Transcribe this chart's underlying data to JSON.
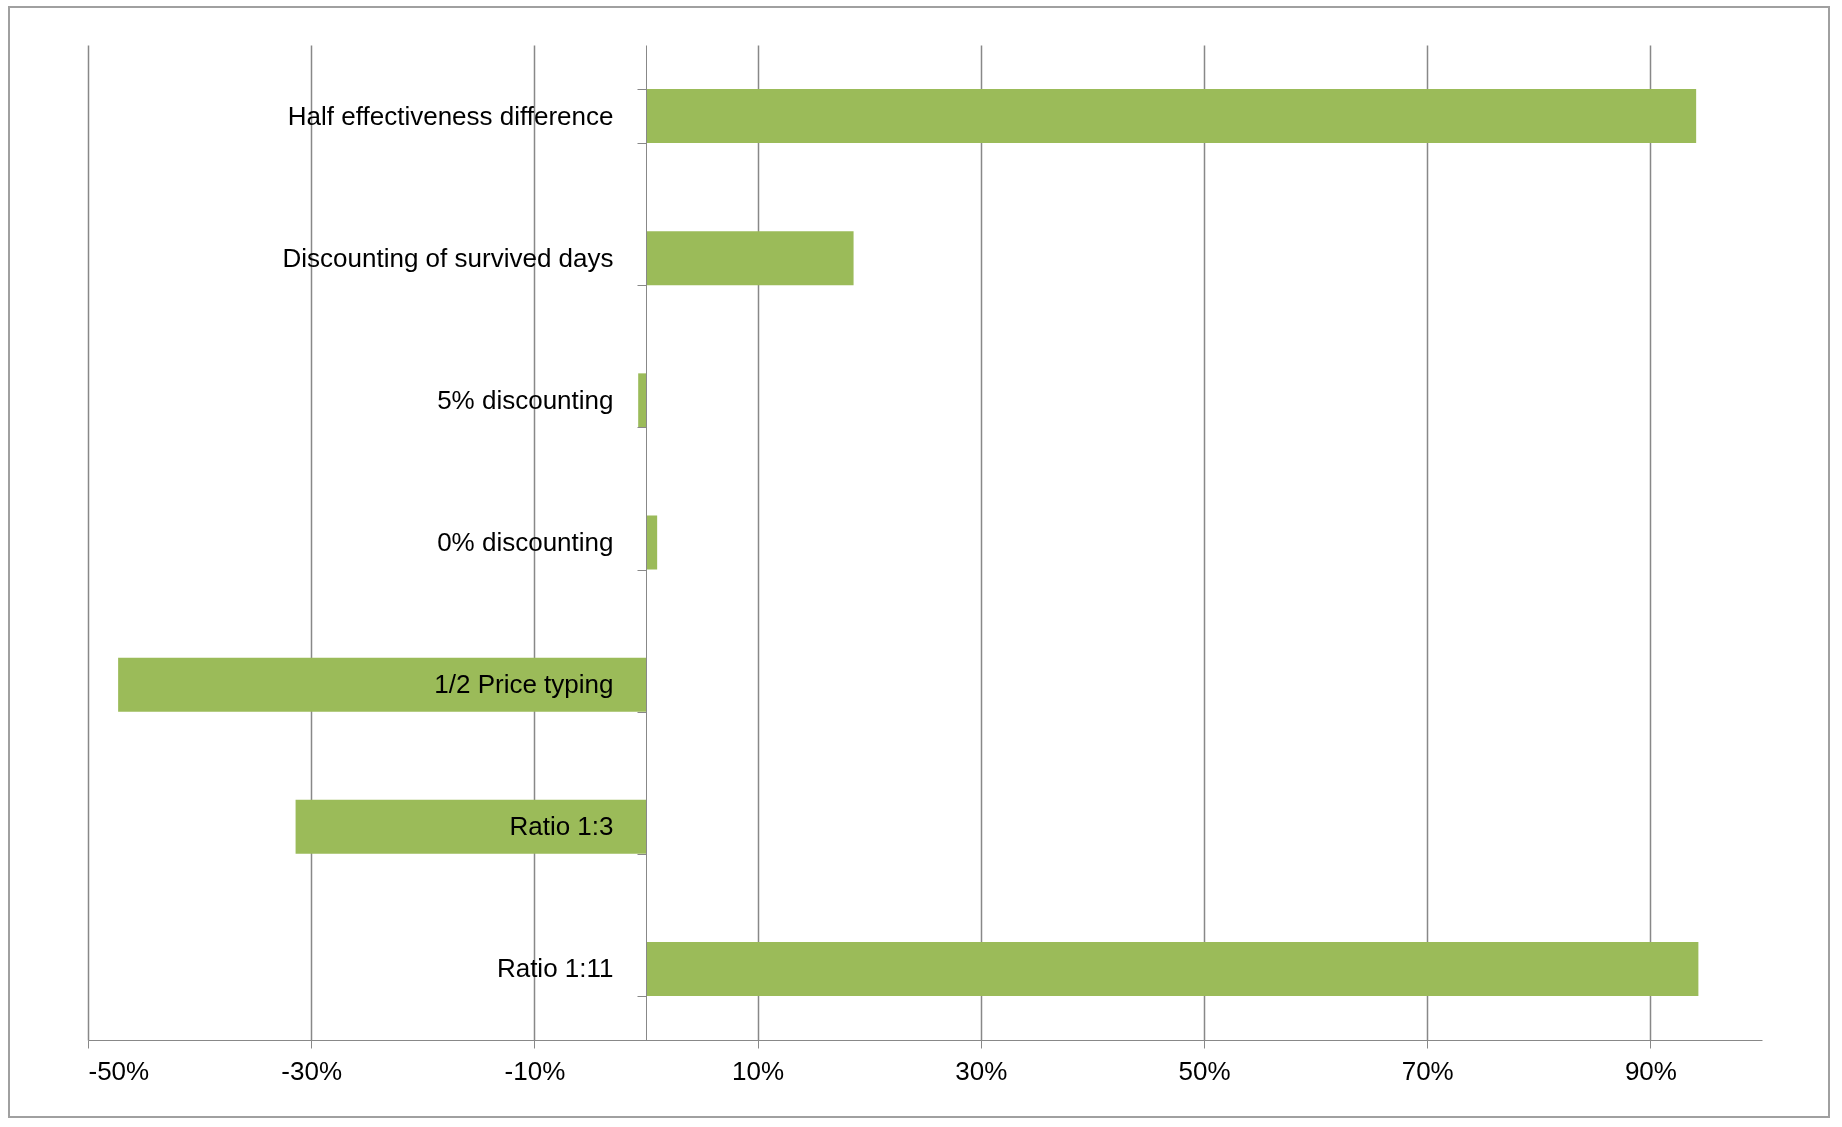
{
  "chart_data": {
    "type": "bar",
    "orientation": "horizontal",
    "categories": [
      "Half effectiveness difference",
      "Discounting of survived days",
      "5% discounting",
      "0% discounting",
      "1/2 Price typing",
      "Ratio 1:3",
      "Ratio 1:11"
    ],
    "values": [
      94.1,
      18.6,
      -0.7,
      1.0,
      -47.3,
      -31.4,
      94.3
    ],
    "color": "#9bbb59",
    "xlim": [
      -50,
      100
    ],
    "xticks": [
      {
        "value": -50,
        "label": "-50%"
      },
      {
        "value": -30,
        "label": "-30%"
      },
      {
        "value": -10,
        "label": "-10%"
      },
      {
        "value": 10,
        "label": "10%"
      },
      {
        "value": 30,
        "label": "30%"
      },
      {
        "value": 50,
        "label": "50%"
      },
      {
        "value": 70,
        "label": "70%"
      },
      {
        "value": 90,
        "label": "90%"
      }
    ],
    "grid": "x"
  }
}
